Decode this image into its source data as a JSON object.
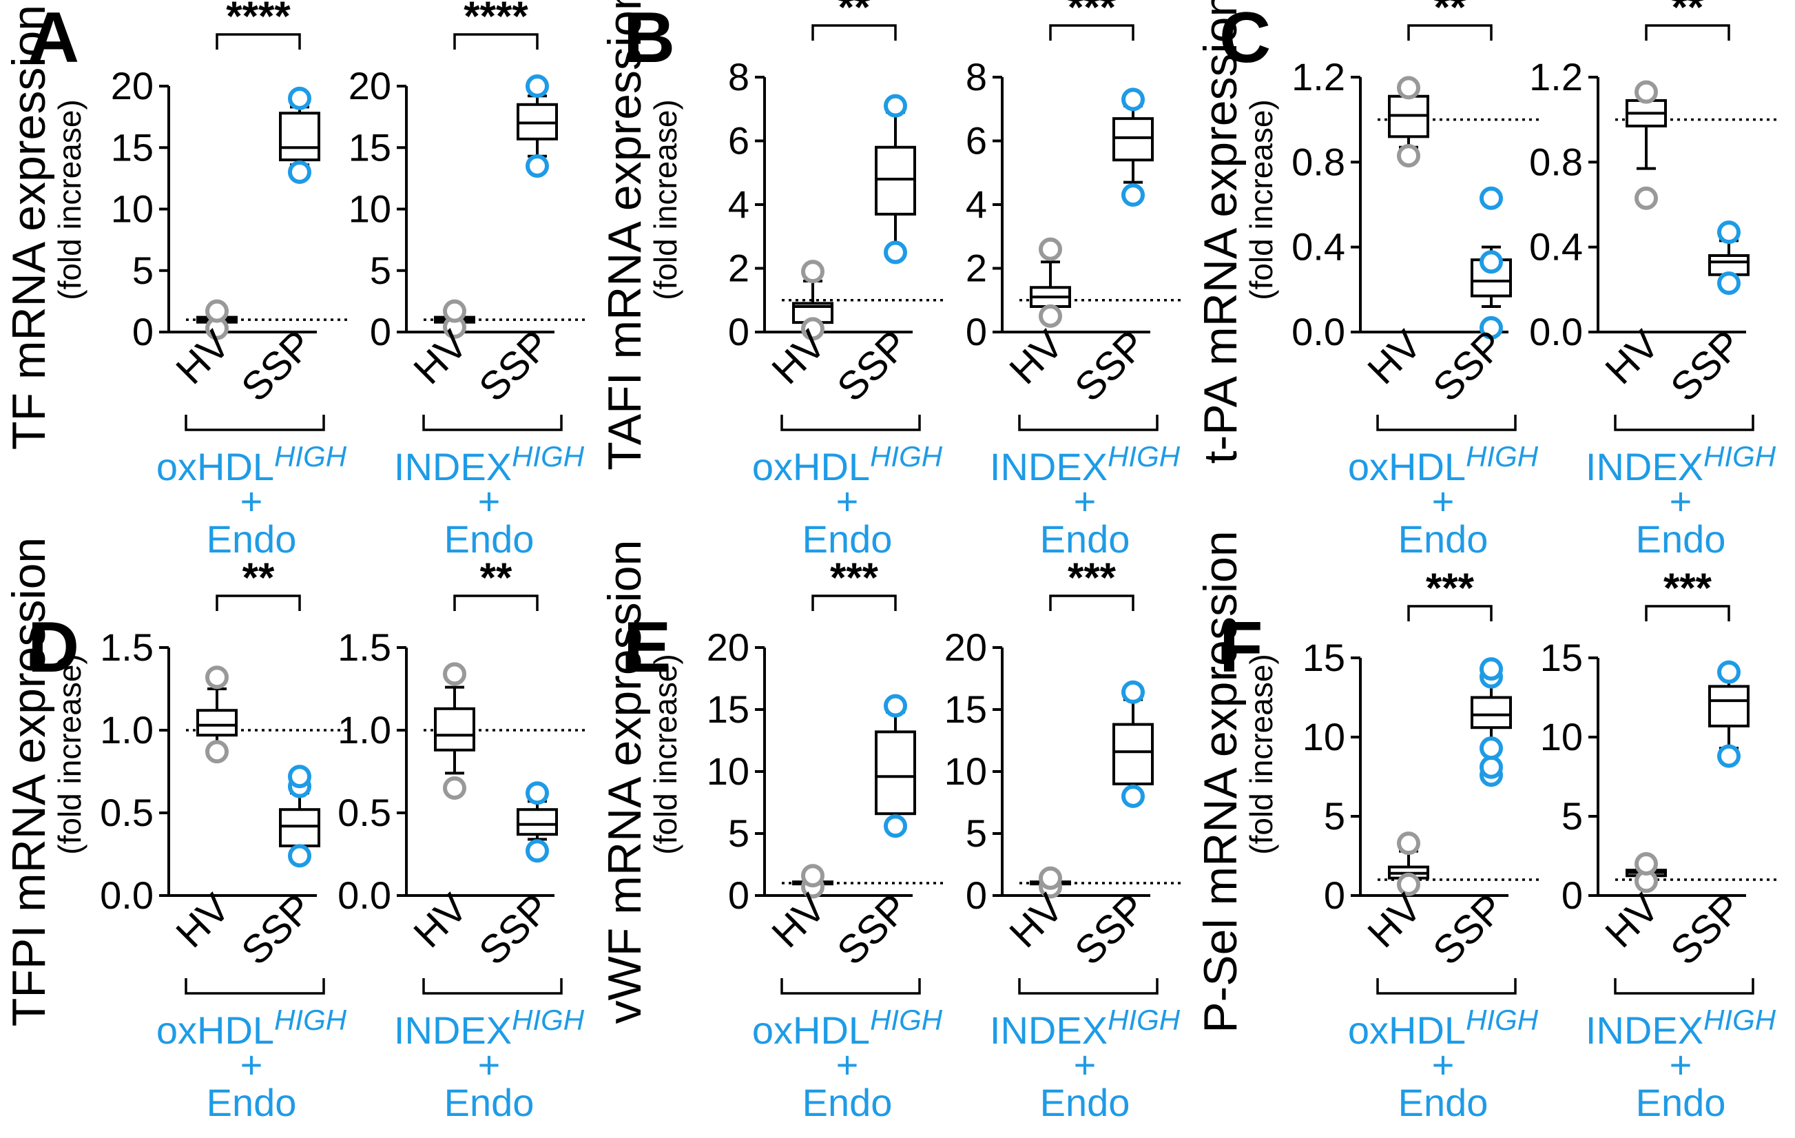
{
  "colors": {
    "hv": "#999999",
    "ssp": "#1e9be6",
    "group_label": "#1e9be6",
    "ink": "#000000"
  },
  "chart_data": [
    {
      "type": "box",
      "panel": "A",
      "ylabel": "TF mRNA expression",
      "ylabel_sub": "(fold increase)",
      "ylim": [
        0,
        20
      ],
      "yticks": [
        "0",
        "5",
        "10",
        "15",
        "20"
      ],
      "plots": [
        {
          "group": {
            "main": "oxHDL",
            "sup": "HIGH",
            "plus": "+",
            "endo": "Endo"
          },
          "significance": "****",
          "categories": [
            "HV",
            "SSP"
          ],
          "boxes": [
            {
              "min": 0.4,
              "q1": 0.8,
              "median": 1.0,
              "q3": 1.2,
              "max": 1.6,
              "outliers": [
                0.3,
                1.7
              ]
            },
            {
              "min": 13.6,
              "q1": 14.0,
              "median": 15.0,
              "q3": 17.8,
              "max": 18.3,
              "outliers": [
                13.0,
                19.0
              ]
            }
          ]
        },
        {
          "group": {
            "main": "INDEX",
            "sup": "HIGH",
            "plus": "+",
            "endo": "Endo"
          },
          "significance": "****",
          "categories": [
            "HV",
            "SSP"
          ],
          "boxes": [
            {
              "min": 0.5,
              "q1": 0.8,
              "median": 1.0,
              "q3": 1.2,
              "max": 1.5,
              "outliers": [
                0.4,
                1.7
              ]
            },
            {
              "min": 14.3,
              "q1": 15.7,
              "median": 17.0,
              "q3": 18.5,
              "max": 19.2,
              "outliers": [
                13.5,
                20.0
              ]
            }
          ]
        }
      ]
    },
    {
      "type": "box",
      "panel": "B",
      "ylabel": "TAFI mRNA expression",
      "ylabel_sub": "(fold increase)",
      "ylim": [
        0,
        8
      ],
      "yticks": [
        "0",
        "2",
        "4",
        "6",
        "8"
      ],
      "plots": [
        {
          "group": {
            "main": "oxHDL",
            "sup": "HIGH",
            "plus": "+",
            "endo": "Endo"
          },
          "significance": "**",
          "categories": [
            "HV",
            "SSP"
          ],
          "boxes": [
            {
              "min": 0.2,
              "q1": 0.3,
              "median": 0.8,
              "q3": 0.9,
              "max": 1.6,
              "outliers": [
                0.1,
                1.9
              ]
            },
            {
              "min": 2.6,
              "q1": 3.7,
              "median": 4.8,
              "q3": 5.8,
              "max": 6.9,
              "outliers": [
                2.5,
                7.1
              ]
            }
          ]
        },
        {
          "group": {
            "main": "INDEX",
            "sup": "HIGH",
            "plus": "+",
            "endo": "Endo"
          },
          "significance": "***",
          "categories": [
            "HV",
            "SSP"
          ],
          "boxes": [
            {
              "min": 0.6,
              "q1": 0.8,
              "median": 1.1,
              "q3": 1.4,
              "max": 2.2,
              "outliers": [
                0.5,
                2.6
              ]
            },
            {
              "min": 4.7,
              "q1": 5.4,
              "median": 6.1,
              "q3": 6.7,
              "max": 7.1,
              "outliers": [
                4.3,
                7.3
              ]
            }
          ]
        }
      ]
    },
    {
      "type": "box",
      "panel": "C",
      "ylabel": "t-PA mRNA expression",
      "ylabel_sub": "(fold increase)",
      "ylim": [
        0,
        1.2
      ],
      "yticks": [
        "0.0",
        "0.4",
        "0.8",
        "1.2"
      ],
      "plots": [
        {
          "group": {
            "main": "oxHDL",
            "sup": "HIGH",
            "plus": "+",
            "endo": "Endo"
          },
          "significance": "**",
          "categories": [
            "HV",
            "SSP"
          ],
          "boxes": [
            {
              "min": 0.87,
              "q1": 0.92,
              "median": 1.02,
              "q3": 1.11,
              "max": 1.13,
              "outliers": [
                0.83,
                1.15
              ]
            },
            {
              "min": 0.12,
              "q1": 0.17,
              "median": 0.24,
              "q3": 0.34,
              "max": 0.4,
              "outliers": [
                0.02,
                0.33,
                0.63
              ]
            }
          ]
        },
        {
          "group": {
            "main": "INDEX",
            "sup": "HIGH",
            "plus": "+",
            "endo": "Endo"
          },
          "significance": "**",
          "categories": [
            "HV",
            "SSP"
          ],
          "boxes": [
            {
              "min": 0.77,
              "q1": 0.97,
              "median": 1.03,
              "q3": 1.09,
              "max": 1.12,
              "outliers": [
                0.63,
                1.13
              ]
            },
            {
              "min": 0.24,
              "q1": 0.27,
              "median": 0.33,
              "q3": 0.36,
              "max": 0.43,
              "outliers": [
                0.23,
                0.47
              ]
            }
          ]
        }
      ]
    },
    {
      "type": "box",
      "panel": "D",
      "ylabel": "TFPI mRNA expression",
      "ylabel_sub": "(fold increase)",
      "ylim": [
        0,
        1.5
      ],
      "yticks": [
        "0.0",
        "0.5",
        "1.0",
        "1.5"
      ],
      "plots": [
        {
          "group": {
            "main": "oxHDL",
            "sup": "HIGH",
            "plus": "+",
            "endo": "Endo"
          },
          "significance": "**",
          "categories": [
            "HV",
            "SSP"
          ],
          "boxes": [
            {
              "min": 0.9,
              "q1": 0.97,
              "median": 1.03,
              "q3": 1.12,
              "max": 1.25,
              "outliers": [
                0.87,
                1.32
              ]
            },
            {
              "min": 0.22,
              "q1": 0.3,
              "median": 0.42,
              "q3": 0.52,
              "max": 0.62,
              "outliers": [
                0.24,
                0.66,
                0.72
              ]
            }
          ]
        },
        {
          "group": {
            "main": "INDEX",
            "sup": "HIGH",
            "plus": "+",
            "endo": "Endo"
          },
          "significance": "**",
          "categories": [
            "HV",
            "SSP"
          ],
          "boxes": [
            {
              "min": 0.74,
              "q1": 0.88,
              "median": 0.97,
              "q3": 1.13,
              "max": 1.26,
              "outliers": [
                0.65,
                1.34
              ]
            },
            {
              "min": 0.34,
              "q1": 0.37,
              "median": 0.43,
              "q3": 0.52,
              "max": 0.57,
              "outliers": [
                0.27,
                0.62
              ]
            }
          ]
        }
      ]
    },
    {
      "type": "box",
      "panel": "E",
      "ylabel": "vWF mRNA expression",
      "ylabel_sub": "(fold increase)",
      "ylim": [
        0,
        20
      ],
      "yticks": [
        "0",
        "5",
        "10",
        "15",
        "20"
      ],
      "plots": [
        {
          "group": {
            "main": "oxHDL",
            "sup": "HIGH",
            "plus": "+",
            "endo": "Endo"
          },
          "significance": "***",
          "categories": [
            "HV",
            "SSP"
          ],
          "boxes": [
            {
              "min": 0.8,
              "q1": 0.95,
              "median": 1.0,
              "q3": 1.1,
              "max": 1.4,
              "outliers": [
                0.7,
                1.6
              ]
            },
            {
              "min": 6.0,
              "q1": 6.6,
              "median": 9.6,
              "q3": 13.2,
              "max": 14.8,
              "outliers": [
                5.6,
                15.3
              ]
            }
          ]
        },
        {
          "group": {
            "main": "INDEX",
            "sup": "HIGH",
            "plus": "+",
            "endo": "Endo"
          },
          "significance": "***",
          "categories": [
            "HV",
            "SSP"
          ],
          "boxes": [
            {
              "min": 0.8,
              "q1": 0.95,
              "median": 1.0,
              "q3": 1.1,
              "max": 1.3,
              "outliers": [
                0.7,
                1.4
              ]
            },
            {
              "min": 8.0,
              "q1": 9.0,
              "median": 11.6,
              "q3": 13.8,
              "max": 15.8,
              "outliers": [
                8.0,
                16.4
              ]
            }
          ]
        }
      ]
    },
    {
      "type": "box",
      "panel": "F",
      "ylabel": "P-Sel mRNA expression",
      "ylabel_sub": "(fold increase)",
      "ylim": [
        0,
        15
      ],
      "yticks": [
        "0",
        "5",
        "10",
        "15"
      ],
      "plots": [
        {
          "group": {
            "main": "oxHDL",
            "sup": "HIGH",
            "plus": "+",
            "endo": "Endo"
          },
          "significance": "***",
          "categories": [
            "HV",
            "SSP"
          ],
          "boxes": [
            {
              "min": 0.8,
              "q1": 1.1,
              "median": 1.4,
              "q3": 1.8,
              "max": 2.8,
              "outliers": [
                0.7,
                3.3
              ]
            },
            {
              "min": 9.5,
              "q1": 10.6,
              "median": 11.4,
              "q3": 12.5,
              "max": 13.7,
              "outliers": [
                7.6,
                8.1,
                9.3,
                13.8,
                14.3
              ]
            }
          ]
        },
        {
          "group": {
            "main": "INDEX",
            "sup": "HIGH",
            "plus": "+",
            "endo": "Endo"
          },
          "significance": "***",
          "categories": [
            "HV",
            "SSP"
          ],
          "boxes": [
            {
              "min": 0.9,
              "q1": 1.25,
              "median": 1.45,
              "q3": 1.6,
              "max": 1.9,
              "outliers": [
                0.9,
                2.0
              ]
            },
            {
              "min": 9.3,
              "q1": 10.7,
              "median": 12.3,
              "q3": 13.2,
              "max": 13.8,
              "outliers": [
                8.8,
                14.1
              ]
            }
          ]
        }
      ]
    }
  ]
}
